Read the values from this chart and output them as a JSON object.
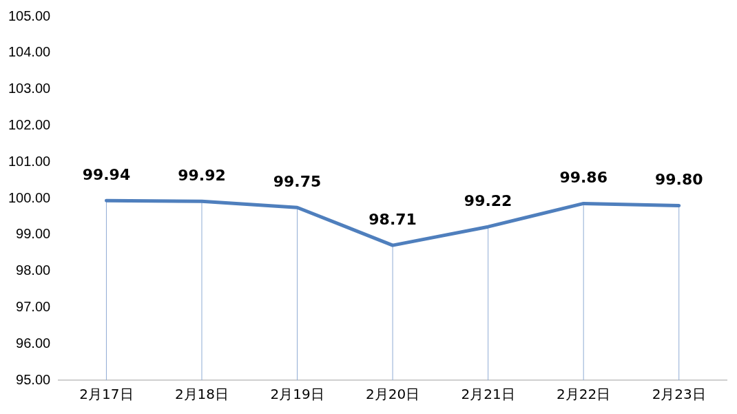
{
  "chart_data": {
    "type": "line",
    "categories": [
      "2月17日",
      "2月18日",
      "2月19日",
      "2月20日",
      "2月21日",
      "2月22日",
      "2月23日"
    ],
    "series": [
      {
        "color": "#4f7fbd",
        "values": [
          99.94,
          99.92,
          99.75,
          98.71,
          99.22,
          99.86,
          99.8
        ],
        "value_labels": [
          "99.94",
          "99.92",
          "99.75",
          "98.71",
          "99.22",
          "99.86",
          "99.80"
        ]
      }
    ],
    "ylim": [
      95,
      105
    ],
    "yticks": [
      {
        "value": 95,
        "label": "95.00"
      },
      {
        "value": 96,
        "label": "96.00"
      },
      {
        "value": 97,
        "label": "97.00"
      },
      {
        "value": 98,
        "label": "98.00"
      },
      {
        "value": 99,
        "label": "99.00"
      },
      {
        "value": 100,
        "label": "100.00"
      },
      {
        "value": 101,
        "label": "101.00"
      },
      {
        "value": 102,
        "label": "102.00"
      },
      {
        "value": 103,
        "label": "103.00"
      },
      {
        "value": 104,
        "label": "104.00"
      },
      {
        "value": 105,
        "label": "105.00"
      }
    ],
    "grid": false,
    "legend": false,
    "marker": "none",
    "line_style": "solid"
  }
}
